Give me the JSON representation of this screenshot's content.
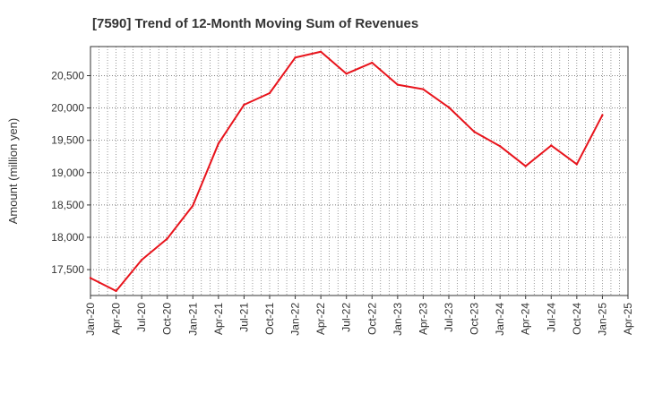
{
  "chart_data": {
    "type": "line",
    "title": "[7590]  Trend of 12-Month Moving Sum of Revenues",
    "xlabel": "",
    "ylabel": "Amount (million yen)",
    "ylim": [
      17100,
      20950
    ],
    "yticks": [
      17500,
      18000,
      18500,
      19000,
      19500,
      20000,
      20500
    ],
    "ytick_labels": [
      "17,500",
      "18,000",
      "18,500",
      "19,000",
      "19,500",
      "20,000",
      "20,500"
    ],
    "x_tick_labels": [
      "Jan-20",
      "Apr-20",
      "Jul-20",
      "Oct-20",
      "Jan-21",
      "Apr-21",
      "Jul-21",
      "Oct-21",
      "Jan-22",
      "Apr-22",
      "Jul-22",
      "Oct-22",
      "Jan-23",
      "Apr-23",
      "Jul-23",
      "Oct-23",
      "Jan-24",
      "Apr-24",
      "Jul-24",
      "Oct-24",
      "Jan-25",
      "Apr-25"
    ],
    "x": [
      "Jan-20",
      "Apr-20",
      "Jul-20",
      "Oct-20",
      "Jan-21",
      "Apr-21",
      "Jul-21",
      "Oct-21",
      "Jan-22",
      "Apr-22",
      "Jul-22",
      "Oct-22",
      "Jan-23",
      "Apr-23",
      "Jul-23",
      "Oct-23",
      "Jan-24",
      "Apr-24",
      "Jul-24",
      "Oct-24",
      "Jan-25"
    ],
    "series": [
      {
        "values": [
          17370,
          17170,
          17650,
          17980,
          18490,
          19450,
          20050,
          20230,
          20780,
          20870,
          20530,
          20700,
          20360,
          20290,
          20010,
          19630,
          19410,
          19100,
          19420,
          19130,
          19890
        ]
      }
    ],
    "grid": true,
    "line_color": "#e8141c",
    "grid_color": "#555555"
  }
}
